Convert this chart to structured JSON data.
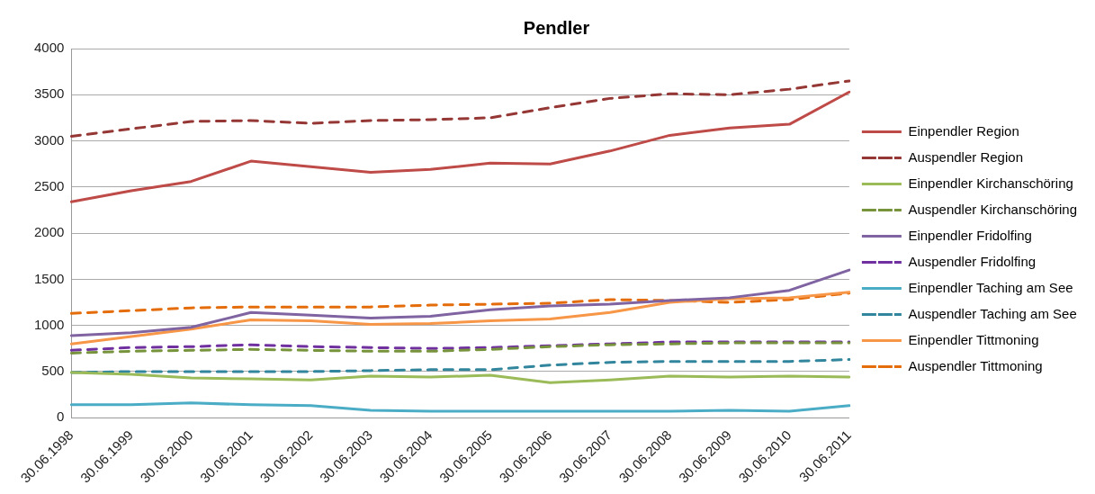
{
  "chart_data": {
    "type": "line",
    "title": "Pendler",
    "categories": [
      "30.06.1998",
      "30.06.1999",
      "30.06.2000",
      "30.06.2001",
      "30.06.2002",
      "30.06.2003",
      "30.06.2004",
      "30.06.2005",
      "30.06.2006",
      "30.06.2007",
      "30.06.2008",
      "30.06.2009",
      "30.06.2010",
      "30.06.2011"
    ],
    "ylim": [
      0,
      4000
    ],
    "yticks": [
      0,
      500,
      1000,
      1500,
      2000,
      2500,
      3000,
      3500,
      4000
    ],
    "grid": "y",
    "legend": "right",
    "marker": "none",
    "series": [
      {
        "name": "Einpendler Region",
        "color": "#be4b48",
        "line_style": "solid",
        "values": [
          2340,
          2460,
          2560,
          2780,
          2720,
          2660,
          2690,
          2760,
          2750,
          2890,
          3060,
          3140,
          3180,
          3530
        ]
      },
      {
        "name": "Auspendler Region",
        "color": "#953735",
        "line_style": "dashed",
        "values": [
          3050,
          3130,
          3210,
          3220,
          3190,
          3220,
          3230,
          3250,
          3360,
          3460,
          3510,
          3500,
          3560,
          3650
        ]
      },
      {
        "name": "Einpendler Kirchanschöring",
        "color": "#9bbb59",
        "line_style": "solid",
        "values": [
          490,
          470,
          430,
          420,
          410,
          450,
          440,
          460,
          380,
          410,
          450,
          440,
          450,
          440
        ]
      },
      {
        "name": "Auspendler Kirchanschöring",
        "color": "#77933c",
        "line_style": "dashed",
        "values": [
          700,
          720,
          730,
          740,
          730,
          720,
          720,
          740,
          770,
          790,
          800,
          810,
          810,
          810
        ]
      },
      {
        "name": "Einpendler Fridolfing",
        "color": "#8064a2",
        "line_style": "solid",
        "values": [
          890,
          920,
          980,
          1140,
          1110,
          1080,
          1100,
          1170,
          1210,
          1230,
          1270,
          1300,
          1380,
          1600
        ]
      },
      {
        "name": "Auspendler Fridolfing",
        "color": "#7030a0",
        "line_style": "dashed",
        "values": [
          730,
          760,
          770,
          790,
          770,
          760,
          750,
          760,
          780,
          800,
          820,
          820,
          820,
          820
        ]
      },
      {
        "name": "Einpendler Taching am See",
        "color": "#4bacc6",
        "line_style": "solid",
        "values": [
          140,
          140,
          160,
          140,
          130,
          80,
          70,
          70,
          70,
          70,
          70,
          80,
          70,
          130
        ]
      },
      {
        "name": "Auspendler Taching am See",
        "color": "#31859c",
        "line_style": "dashed",
        "values": [
          490,
          500,
          500,
          500,
          500,
          510,
          520,
          520,
          570,
          600,
          610,
          610,
          610,
          630
        ]
      },
      {
        "name": "Einpendler Tittmoning",
        "color": "#f79646",
        "line_style": "solid",
        "values": [
          800,
          880,
          960,
          1060,
          1050,
          1010,
          1020,
          1050,
          1070,
          1140,
          1250,
          1290,
          1300,
          1360
        ]
      },
      {
        "name": "Auspendler Tittmoning",
        "color": "#e46c0a",
        "line_style": "dashed",
        "values": [
          1130,
          1160,
          1190,
          1200,
          1200,
          1200,
          1220,
          1230,
          1240,
          1280,
          1270,
          1250,
          1280,
          1350
        ]
      }
    ]
  }
}
